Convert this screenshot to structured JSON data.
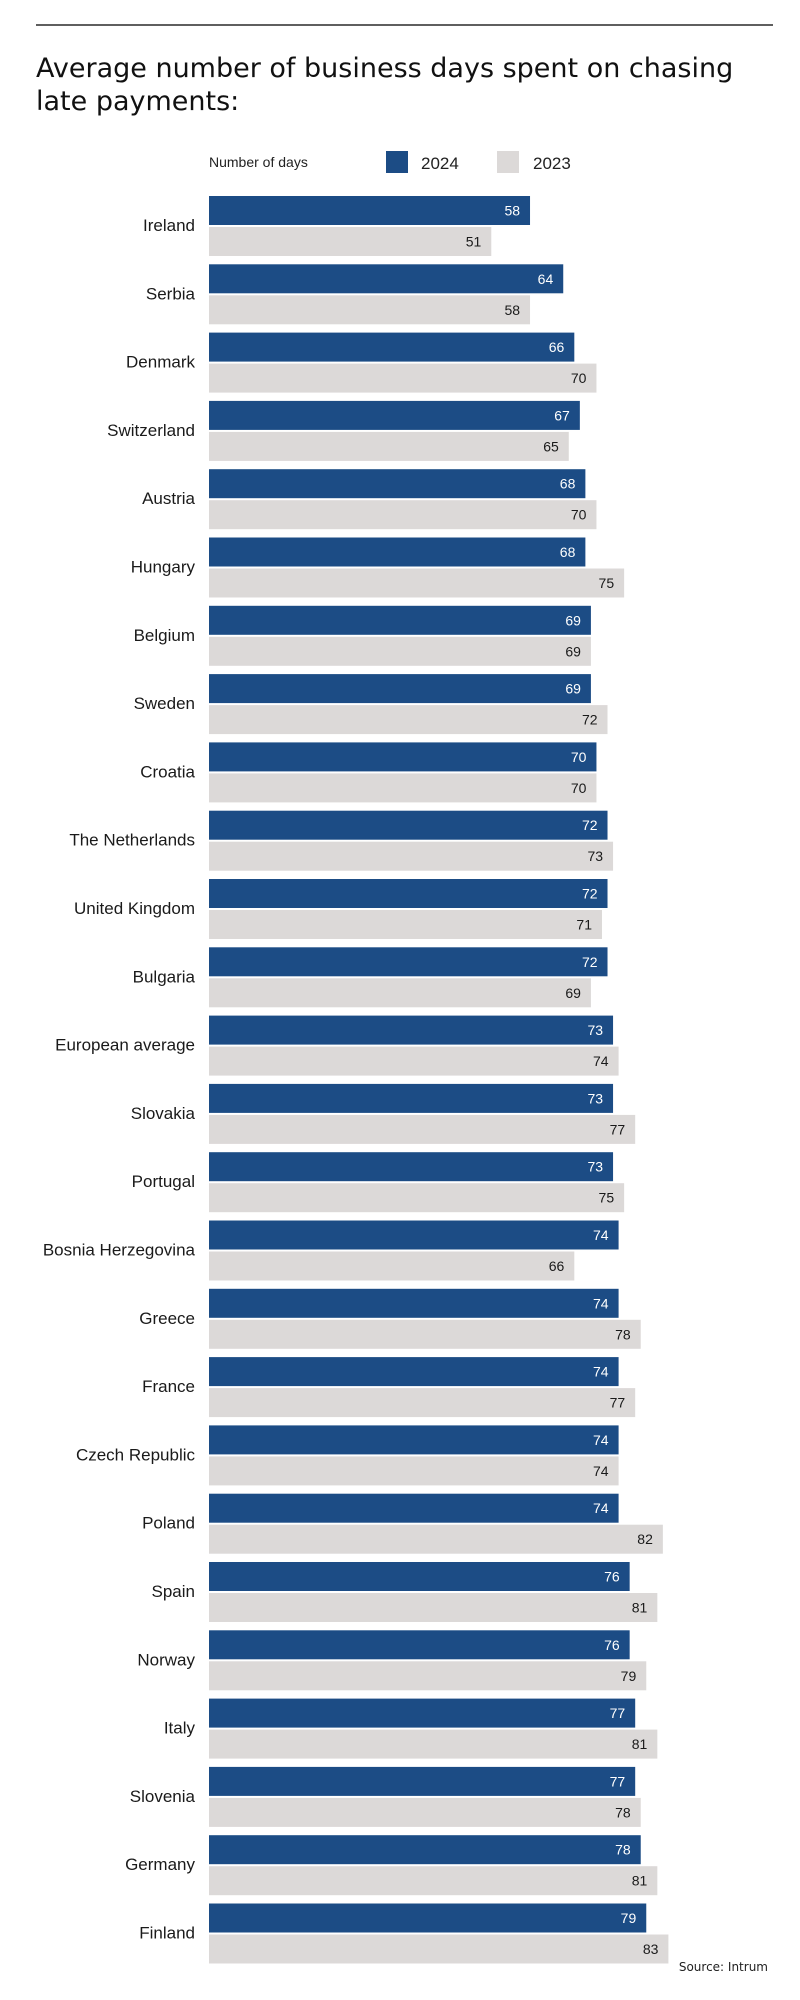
{
  "chart_data": {
    "type": "bar",
    "orientation": "horizontal",
    "title": "Average number of business days spent on chasing late payments:",
    "legend_title": "Number of days",
    "legend_placement": "top",
    "grid": false,
    "xlim": [
      0,
      83
    ],
    "categories": [
      "Ireland",
      "Serbia",
      "Denmark",
      "Switzerland",
      "Austria",
      "Hungary",
      "Belgium",
      "Sweden",
      "Croatia",
      "The Netherlands",
      "United Kingdom",
      "Bulgaria",
      "European average",
      "Slovakia",
      "Portugal",
      "Bosnia Herzegovina",
      "Greece",
      "France",
      "Czech Republic",
      "Poland",
      "Spain",
      "Norway",
      "Italy",
      "Slovenia",
      "Germany",
      "Finland"
    ],
    "series": [
      {
        "name": "2024",
        "color": "#1c4c85",
        "label_color": "#ffffff",
        "values": [
          58,
          64,
          66,
          67,
          68,
          68,
          69,
          69,
          70,
          72,
          72,
          72,
          73,
          73,
          73,
          74,
          74,
          74,
          74,
          74,
          76,
          76,
          77,
          77,
          78,
          79
        ]
      },
      {
        "name": "2023",
        "color": "#dcd9d8",
        "label_color": "#1a1a1a",
        "values": [
          51,
          58,
          70,
          65,
          70,
          75,
          69,
          72,
          70,
          73,
          71,
          69,
          74,
          77,
          75,
          66,
          78,
          77,
          74,
          82,
          81,
          79,
          81,
          78,
          81,
          83
        ]
      }
    ],
    "source": "Source: Intrum"
  }
}
